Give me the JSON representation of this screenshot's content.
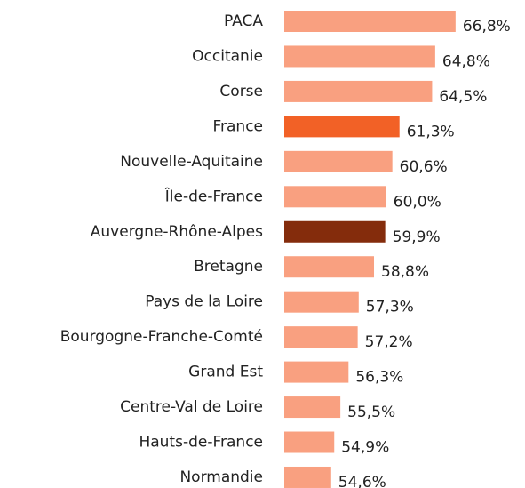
{
  "chart_data": {
    "type": "barh",
    "categories": [
      "PACA",
      "Occitanie",
      "Corse",
      "France",
      "Nouvelle-Aquitaine",
      "Île-de-France",
      "Auvergne-Rhône-Alpes",
      "Bretagne",
      "Pays de la Loire",
      "Bourgogne-Franche-Comté",
      "Grand Est",
      "Centre-Val de Loire",
      "Hauts-de-France",
      "Normandie"
    ],
    "values": [
      66.8,
      64.8,
      64.5,
      61.3,
      60.6,
      60.0,
      59.9,
      58.8,
      57.3,
      57.2,
      56.3,
      55.5,
      54.9,
      54.6
    ],
    "value_labels": [
      "66,8%",
      "64,8%",
      "64,5%",
      "61,3%",
      "60,6%",
      "60,0%",
      "59,9%",
      "58,8%",
      "57,3%",
      "57,2%",
      "56,3%",
      "55,5%",
      "54,9%",
      "54,6%"
    ],
    "colors": [
      "#f9a080",
      "#f9a080",
      "#f9a080",
      "#f26126",
      "#f9a080",
      "#f9a080",
      "#842c0c",
      "#f9a080",
      "#f9a080",
      "#f9a080",
      "#f9a080",
      "#f9a080",
      "#f9a080",
      "#f9a080"
    ],
    "xlim": [
      50,
      73
    ]
  }
}
